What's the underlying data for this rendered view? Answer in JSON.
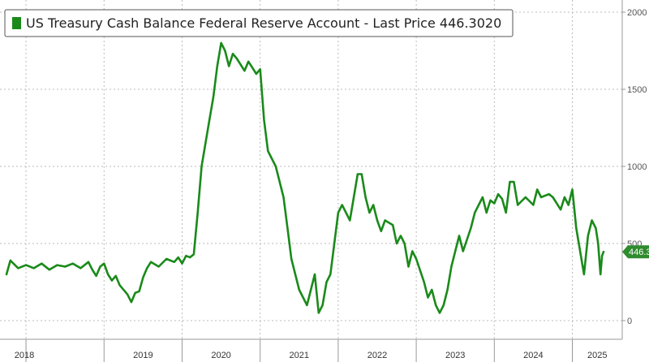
{
  "chart_data": {
    "type": "line",
    "title": "US Treasury Cash Balance Federal Reserve Account - Last Price 446.3020",
    "legend": {
      "series_name": "US Treasury Cash Balance Federal Reserve Account",
      "last_price_label": "Last Price",
      "last_price_value": "446.3020",
      "placement": "top-left"
    },
    "last_value_tag": "446.3",
    "series_color": "#1a8a1a",
    "last_tag_color": "#2e8b2e",
    "x_axis": {
      "range": [
        2018.0,
        2025.35
      ],
      "ticks": [
        2018,
        2019,
        2020,
        2021,
        2022,
        2023,
        2024,
        2025
      ],
      "tick_labels": [
        "2018",
        "2019",
        "2020",
        "2021",
        "2022",
        "2023",
        "2024",
        "2025"
      ]
    },
    "y_axis": {
      "side": "right",
      "range": [
        -100,
        2050
      ],
      "ticks": [
        0,
        500,
        1000,
        1500,
        2000
      ],
      "tick_labels": [
        "0",
        "500",
        "1000",
        "1500",
        "2000"
      ]
    },
    "grid": true,
    "series": [
      {
        "name": "US Treasury Cash Balance Federal Reserve Account",
        "points": [
          [
            2017.75,
            300
          ],
          [
            2017.8,
            390
          ],
          [
            2017.9,
            340
          ],
          [
            2018.0,
            360
          ],
          [
            2018.1,
            340
          ],
          [
            2018.2,
            370
          ],
          [
            2018.3,
            330
          ],
          [
            2018.4,
            360
          ],
          [
            2018.5,
            350
          ],
          [
            2018.6,
            370
          ],
          [
            2018.7,
            340
          ],
          [
            2018.8,
            380
          ],
          [
            2018.85,
            330
          ],
          [
            2018.9,
            290
          ],
          [
            2018.95,
            350
          ],
          [
            2019.0,
            370
          ],
          [
            2019.05,
            300
          ],
          [
            2019.1,
            260
          ],
          [
            2019.15,
            290
          ],
          [
            2019.2,
            230
          ],
          [
            2019.3,
            170
          ],
          [
            2019.35,
            120
          ],
          [
            2019.4,
            180
          ],
          [
            2019.45,
            190
          ],
          [
            2019.5,
            280
          ],
          [
            2019.55,
            340
          ],
          [
            2019.6,
            380
          ],
          [
            2019.7,
            350
          ],
          [
            2019.8,
            400
          ],
          [
            2019.9,
            380
          ],
          [
            2019.95,
            410
          ],
          [
            2020.0,
            370
          ],
          [
            2020.05,
            420
          ],
          [
            2020.1,
            410
          ],
          [
            2020.15,
            430
          ],
          [
            2020.2,
            700
          ],
          [
            2020.25,
            1000
          ],
          [
            2020.3,
            1150
          ],
          [
            2020.35,
            1300
          ],
          [
            2020.4,
            1450
          ],
          [
            2020.45,
            1650
          ],
          [
            2020.5,
            1800
          ],
          [
            2020.55,
            1750
          ],
          [
            2020.6,
            1650
          ],
          [
            2020.65,
            1730
          ],
          [
            2020.7,
            1700
          ],
          [
            2020.75,
            1660
          ],
          [
            2020.8,
            1620
          ],
          [
            2020.85,
            1680
          ],
          [
            2020.9,
            1640
          ],
          [
            2020.95,
            1600
          ],
          [
            2021.0,
            1630
          ],
          [
            2021.05,
            1300
          ],
          [
            2021.1,
            1100
          ],
          [
            2021.15,
            1050
          ],
          [
            2021.2,
            1000
          ],
          [
            2021.25,
            900
          ],
          [
            2021.3,
            800
          ],
          [
            2021.35,
            600
          ],
          [
            2021.4,
            400
          ],
          [
            2021.5,
            200
          ],
          [
            2021.55,
            150
          ],
          [
            2021.6,
            100
          ],
          [
            2021.65,
            200
          ],
          [
            2021.7,
            300
          ],
          [
            2021.75,
            50
          ],
          [
            2021.8,
            100
          ],
          [
            2021.85,
            250
          ],
          [
            2021.9,
            300
          ],
          [
            2021.95,
            500
          ],
          [
            2022.0,
            700
          ],
          [
            2022.05,
            750
          ],
          [
            2022.1,
            700
          ],
          [
            2022.15,
            650
          ],
          [
            2022.2,
            800
          ],
          [
            2022.25,
            950
          ],
          [
            2022.3,
            950
          ],
          [
            2022.35,
            800
          ],
          [
            2022.4,
            700
          ],
          [
            2022.45,
            750
          ],
          [
            2022.5,
            650
          ],
          [
            2022.55,
            580
          ],
          [
            2022.6,
            650
          ],
          [
            2022.7,
            620
          ],
          [
            2022.75,
            500
          ],
          [
            2022.8,
            550
          ],
          [
            2022.85,
            500
          ],
          [
            2022.9,
            350
          ],
          [
            2022.95,
            450
          ],
          [
            2023.0,
            400
          ],
          [
            2023.1,
            250
          ],
          [
            2023.15,
            150
          ],
          [
            2023.2,
            200
          ],
          [
            2023.25,
            100
          ],
          [
            2023.3,
            50
          ],
          [
            2023.35,
            100
          ],
          [
            2023.4,
            200
          ],
          [
            2023.45,
            350
          ],
          [
            2023.5,
            450
          ],
          [
            2023.55,
            550
          ],
          [
            2023.6,
            450
          ],
          [
            2023.7,
            600
          ],
          [
            2023.75,
            700
          ],
          [
            2023.8,
            750
          ],
          [
            2023.85,
            800
          ],
          [
            2023.9,
            700
          ],
          [
            2023.95,
            780
          ],
          [
            2024.0,
            760
          ],
          [
            2024.05,
            820
          ],
          [
            2024.1,
            790
          ],
          [
            2024.15,
            700
          ],
          [
            2024.2,
            900
          ],
          [
            2024.25,
            900
          ],
          [
            2024.3,
            750
          ],
          [
            2024.4,
            800
          ],
          [
            2024.5,
            750
          ],
          [
            2024.55,
            850
          ],
          [
            2024.6,
            800
          ],
          [
            2024.7,
            820
          ],
          [
            2024.75,
            800
          ],
          [
            2024.8,
            760
          ],
          [
            2024.85,
            720
          ],
          [
            2024.9,
            800
          ],
          [
            2024.95,
            750
          ],
          [
            2025.0,
            850
          ],
          [
            2025.05,
            600
          ],
          [
            2025.1,
            450
          ],
          [
            2025.15,
            300
          ],
          [
            2025.2,
            550
          ],
          [
            2025.25,
            650
          ],
          [
            2025.3,
            600
          ],
          [
            2025.33,
            500
          ],
          [
            2025.36,
            300
          ],
          [
            2025.38,
            420
          ],
          [
            2025.4,
            446.3
          ]
        ]
      }
    ]
  }
}
